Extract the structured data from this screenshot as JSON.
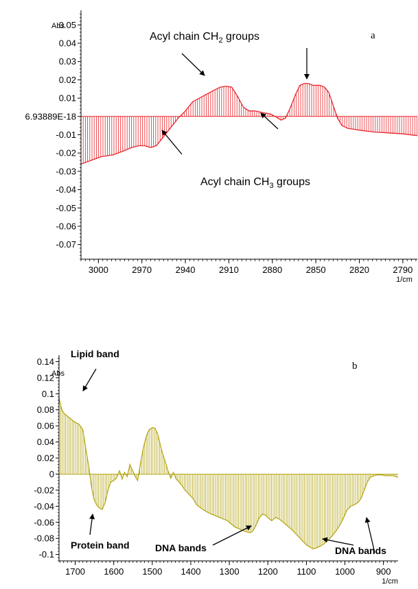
{
  "chart_data": [
    {
      "type": "area",
      "panel_label": "a",
      "y_unit": "Abs",
      "x_unit": "1/cm",
      "xlim": [
        3012,
        2780
      ],
      "ylim": [
        -0.078,
        0.058
      ],
      "x_ticks": [
        3000,
        2970,
        2940,
        2910,
        2880,
        2850,
        2820,
        2790
      ],
      "y_ticks": [
        {
          "v": 0.05,
          "label": "0.05"
        },
        {
          "v": 0.04,
          "label": "0.04"
        },
        {
          "v": 0.03,
          "label": "0.03"
        },
        {
          "v": 0.02,
          "label": "0.02"
        },
        {
          "v": 0.01,
          "label": "0.01"
        },
        {
          "v": 0.0,
          "label": "6.93889E-18"
        },
        {
          "v": -0.01,
          "label": "-0.01"
        },
        {
          "v": -0.02,
          "label": "-0.02"
        },
        {
          "v": -0.03,
          "label": "-0.03"
        },
        {
          "v": -0.04,
          "label": "-0.04"
        },
        {
          "v": -0.05,
          "label": "-0.05"
        },
        {
          "v": -0.06,
          "label": "-0.06"
        },
        {
          "v": -0.07,
          "label": "-0.07"
        }
      ],
      "color": "#e8242a",
      "series": [
        {
          "x": [
            3012,
            3005,
            2998,
            2990,
            2983,
            2977,
            2972,
            2968,
            2964,
            2960,
            2955,
            2950,
            2945,
            2940,
            2935,
            2928,
            2921,
            2916,
            2912,
            2908,
            2904,
            2900,
            2896,
            2892,
            2886,
            2882,
            2878,
            2874,
            2871,
            2868,
            2864,
            2861,
            2858,
            2855,
            2852,
            2850,
            2847,
            2844,
            2841,
            2838,
            2835,
            2832,
            2828,
            2820,
            2810,
            2800,
            2790,
            2780
          ],
          "y": [
            -0.026,
            -0.024,
            -0.022,
            -0.021,
            -0.019,
            -0.017,
            -0.016,
            -0.016,
            -0.017,
            -0.016,
            -0.011,
            -0.006,
            -0.001,
            0.003,
            0.008,
            0.011,
            0.014,
            0.016,
            0.0165,
            0.016,
            0.011,
            0.005,
            0.003,
            0.003,
            0.002,
            0.0015,
            0.0,
            -0.002,
            -0.001,
            0.004,
            0.012,
            0.017,
            0.018,
            0.018,
            0.017,
            0.017,
            0.017,
            0.016,
            0.013,
            0.006,
            -0.001,
            -0.005,
            -0.0065,
            -0.0075,
            -0.0085,
            -0.009,
            -0.0095,
            -0.0105
          ]
        }
      ],
      "annotations": [
        {
          "id": "ch2",
          "text": "Acyl chain CH",
          "sub": "2",
          "text_after": " groups"
        },
        {
          "id": "ch3",
          "text": "Acyl chain CH",
          "sub": "3",
          "text_after": " groups"
        }
      ]
    },
    {
      "type": "area",
      "panel_label": "b",
      "y_unit": "Abs",
      "x_unit": "1/cm",
      "xlim": [
        1742,
        862
      ],
      "ylim": [
        -0.108,
        0.148
      ],
      "x_ticks": [
        1700,
        1600,
        1500,
        1400,
        1300,
        1200,
        1100,
        1000,
        900
      ],
      "y_ticks": [
        {
          "v": 0.14,
          "label": "0.14"
        },
        {
          "v": 0.12,
          "label": "0.12"
        },
        {
          "v": 0.1,
          "label": "0.1"
        },
        {
          "v": 0.08,
          "label": "0.08"
        },
        {
          "v": 0.06,
          "label": "0.06"
        },
        {
          "v": 0.04,
          "label": "0.04"
        },
        {
          "v": 0.02,
          "label": "0.02"
        },
        {
          "v": 0.0,
          "label": "0"
        },
        {
          "v": -0.02,
          "label": "-0.02"
        },
        {
          "v": -0.04,
          "label": "-0.04"
        },
        {
          "v": -0.06,
          "label": "-0.06"
        },
        {
          "v": -0.08,
          "label": "-0.08"
        },
        {
          "v": -0.1,
          "label": "-0.1"
        }
      ],
      "color": "#b5a617",
      "series": [
        {
          "x": [
            1742,
            1735,
            1728,
            1720,
            1712,
            1705,
            1698,
            1690,
            1680,
            1672,
            1665,
            1658,
            1652,
            1645,
            1638,
            1630,
            1622,
            1615,
            1608,
            1600,
            1593,
            1585,
            1578,
            1572,
            1565,
            1558,
            1552,
            1545,
            1538,
            1530,
            1522,
            1515,
            1508,
            1500,
            1493,
            1486,
            1480,
            1473,
            1466,
            1460,
            1452,
            1445,
            1438,
            1430,
            1422,
            1415,
            1405,
            1395,
            1385,
            1375,
            1365,
            1355,
            1345,
            1335,
            1325,
            1315,
            1305,
            1295,
            1285,
            1275,
            1265,
            1255,
            1245,
            1238,
            1230,
            1222,
            1214,
            1206,
            1198,
            1190,
            1180,
            1170,
            1160,
            1150,
            1140,
            1130,
            1120,
            1110,
            1100,
            1090,
            1083,
            1075,
            1065,
            1055,
            1045,
            1035,
            1025,
            1015,
            1005,
            995,
            985,
            975,
            965,
            958,
            950,
            942,
            935,
            925,
            915,
            905,
            895,
            885,
            875,
            862
          ],
          "y": [
            0.095,
            0.08,
            0.075,
            0.072,
            0.069,
            0.066,
            0.064,
            0.062,
            0.055,
            0.03,
            0.01,
            -0.015,
            -0.03,
            -0.038,
            -0.042,
            -0.044,
            -0.035,
            -0.02,
            -0.01,
            -0.008,
            -0.005,
            0.004,
            -0.006,
            0.002,
            -0.003,
            0.012,
            0.005,
            -0.002,
            -0.008,
            0.015,
            0.035,
            0.048,
            0.055,
            0.058,
            0.057,
            0.05,
            0.038,
            0.025,
            0.015,
            0.005,
            -0.005,
            0.002,
            -0.006,
            -0.01,
            -0.015,
            -0.02,
            -0.025,
            -0.03,
            -0.038,
            -0.042,
            -0.045,
            -0.048,
            -0.05,
            -0.052,
            -0.054,
            -0.056,
            -0.058,
            -0.062,
            -0.066,
            -0.068,
            -0.07,
            -0.072,
            -0.073,
            -0.07,
            -0.063,
            -0.054,
            -0.05,
            -0.051,
            -0.055,
            -0.058,
            -0.054,
            -0.056,
            -0.06,
            -0.064,
            -0.068,
            -0.073,
            -0.078,
            -0.083,
            -0.088,
            -0.091,
            -0.093,
            -0.092,
            -0.09,
            -0.087,
            -0.083,
            -0.078,
            -0.072,
            -0.065,
            -0.056,
            -0.045,
            -0.04,
            -0.038,
            -0.035,
            -0.03,
            -0.02,
            -0.01,
            -0.004,
            -0.002,
            -0.001,
            -0.001,
            -0.002,
            -0.002,
            -0.002,
            -0.004
          ]
        }
      ],
      "annotations": [
        {
          "id": "lipid",
          "text": "Lipid band"
        },
        {
          "id": "protein",
          "text": "Protein band"
        },
        {
          "id": "dna1",
          "text": "DNA bands"
        },
        {
          "id": "dna2",
          "text": "DNA bands"
        }
      ]
    }
  ]
}
